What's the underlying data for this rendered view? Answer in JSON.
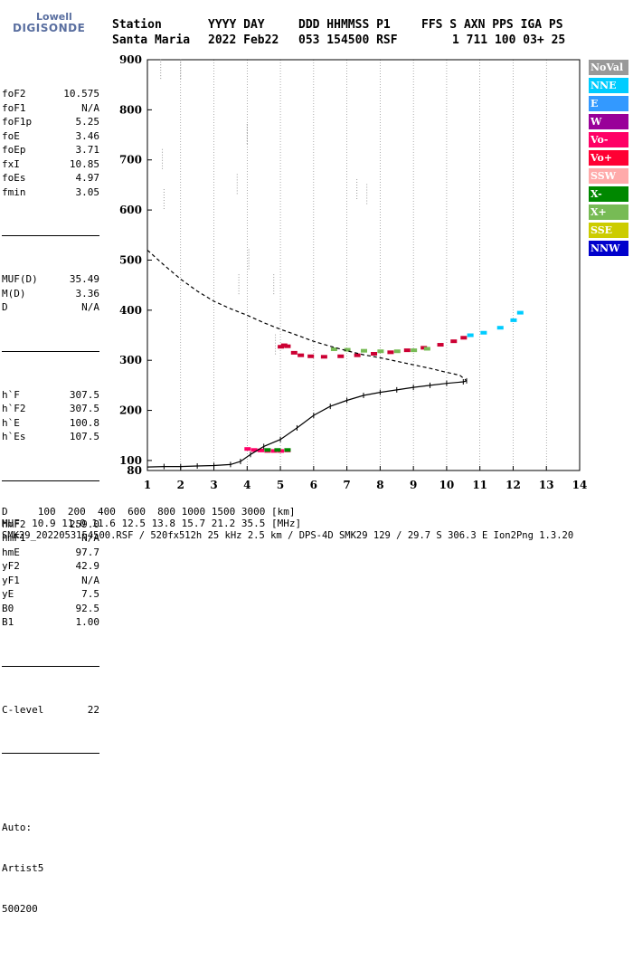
{
  "logo": {
    "line1": "Lowell",
    "line2": "DIGISONDE"
  },
  "header": {
    "labels": [
      "Station",
      "YYYY DAY",
      "DDD HHMMSS P1",
      "FFS S AXN PPS IGA PS"
    ],
    "values": [
      "Santa Maria",
      "2022 Feb22",
      "053 154500 RSF",
      "1 711 100 03+ 25"
    ]
  },
  "params": {
    "group1": [
      {
        "name": "foF2",
        "value": "10.575"
      },
      {
        "name": "foF1",
        "value": "N/A"
      },
      {
        "name": "foF1p",
        "value": "5.25"
      },
      {
        "name": "foE",
        "value": "3.46"
      },
      {
        "name": "foEp",
        "value": "3.71"
      },
      {
        "name": "fxI",
        "value": "10.85"
      },
      {
        "name": "foEs",
        "value": "4.97"
      },
      {
        "name": "fmin",
        "value": "3.05"
      }
    ],
    "group2": [
      {
        "name": "MUF(D)",
        "value": "35.49"
      },
      {
        "name": "M(D)",
        "value": "3.36"
      },
      {
        "name": "D",
        "value": "N/A"
      }
    ],
    "group3": [
      {
        "name": "h`F",
        "value": "307.5"
      },
      {
        "name": "h`F2",
        "value": "307.5"
      },
      {
        "name": "h`E",
        "value": "100.8"
      },
      {
        "name": "h`Es",
        "value": "107.5"
      }
    ],
    "group4": [
      {
        "name": "hmF2",
        "value": "259.0"
      },
      {
        "name": "hmF1",
        "value": "N/A"
      },
      {
        "name": "hmE",
        "value": "97.7"
      },
      {
        "name": "yF2",
        "value": "42.9"
      },
      {
        "name": "yF1",
        "value": "N/A"
      },
      {
        "name": "yE",
        "value": "7.5"
      },
      {
        "name": "B0",
        "value": "92.5"
      },
      {
        "name": "B1",
        "value": "1.00"
      }
    ],
    "group5": [
      {
        "name": "C-level",
        "value": "22"
      }
    ],
    "footer_lines": [
      "Auto:",
      "Artist5",
      "500200"
    ]
  },
  "legend": [
    {
      "label": "NoVal",
      "color": "#999999"
    },
    {
      "label": "NNE",
      "color": "#00ccff"
    },
    {
      "label": "E",
      "color": "#3399ff"
    },
    {
      "label": "W",
      "color": "#990099"
    },
    {
      "label": "Vo-",
      "color": "#ff0066"
    },
    {
      "label": "Vo+",
      "color": "#ff0033"
    },
    {
      "label": "SSW",
      "color": "#ffaaaa"
    },
    {
      "label": "X-",
      "color": "#008800"
    },
    {
      "label": "X+",
      "color": "#77bb55"
    },
    {
      "label": "SSE",
      "color": "#cccc00"
    },
    {
      "label": "NNW",
      "color": "#0000cc"
    }
  ],
  "bottom": {
    "d_line": "D     100  200  400  600  800 1000 1500 3000 [km]",
    "muf_line": "MUF  10.9 11.0 11.6 12.5 13.8 15.7 21.2 35.5 [MHz]",
    "file_line": "SMK29_2022053154500.RSF / 520fx512h 25 kHz 2.5 km / DPS-4D SMK29 129 / 29.7 S 306.3 E Ion2Png 1.3.20"
  },
  "chart_data": {
    "type": "scatter",
    "xlim": [
      1,
      14
    ],
    "ylim": [
      80,
      900
    ],
    "xticks": [
      1,
      2,
      3,
      4,
      5,
      6,
      7,
      8,
      9,
      10,
      11,
      12,
      13,
      14
    ],
    "yticks": [
      100,
      200,
      300,
      400,
      500,
      600,
      700,
      800,
      900
    ],
    "grid": "vertical dotted",
    "legend_position": "right",
    "series": [
      {
        "name": "Vo+",
        "color": "#cc0033",
        "points": [
          [
            5.0,
            327
          ],
          [
            5.1,
            330
          ],
          [
            5.2,
            328
          ],
          [
            5.4,
            315
          ],
          [
            5.6,
            310
          ],
          [
            5.9,
            308
          ],
          [
            6.3,
            307
          ],
          [
            6.8,
            308
          ],
          [
            7.3,
            310
          ],
          [
            7.8,
            313
          ],
          [
            8.3,
            316
          ],
          [
            8.8,
            320
          ],
          [
            9.3,
            325
          ],
          [
            9.8,
            331
          ],
          [
            10.2,
            338
          ],
          [
            10.5,
            345
          ]
        ]
      },
      {
        "name": "X+",
        "color": "#77bb55",
        "points": [
          [
            6.6,
            322
          ],
          [
            7.0,
            321
          ],
          [
            7.5,
            319
          ],
          [
            8.0,
            318
          ],
          [
            8.5,
            318
          ],
          [
            9.0,
            320
          ],
          [
            9.4,
            323
          ]
        ]
      },
      {
        "name": "Vo-",
        "color": "#ff0066",
        "points": [
          [
            4.0,
            123
          ],
          [
            4.2,
            121
          ],
          [
            4.4,
            120
          ],
          [
            4.6,
            119
          ],
          [
            4.8,
            119
          ],
          [
            5.0,
            119
          ],
          [
            5.2,
            120
          ]
        ]
      },
      {
        "name": "X-",
        "color": "#008800",
        "points": [
          [
            4.6,
            121
          ],
          [
            4.9,
            121
          ],
          [
            5.2,
            121
          ]
        ]
      },
      {
        "name": "NNE",
        "color": "#00ccff",
        "points": [
          [
            10.7,
            350
          ],
          [
            11.1,
            355
          ],
          [
            11.6,
            365
          ],
          [
            12.0,
            380
          ],
          [
            12.2,
            395
          ]
        ]
      },
      {
        "name": "NoVal",
        "color": "#999999",
        "points": [
          [
            1.4,
            880
          ],
          [
            1.45,
            700
          ],
          [
            1.5,
            620
          ],
          [
            2.0,
            880
          ],
          [
            3.7,
            650
          ],
          [
            3.75,
            450
          ],
          [
            4.0,
            750
          ],
          [
            4.05,
            500
          ],
          [
            4.8,
            450
          ],
          [
            4.85,
            330
          ],
          [
            7.3,
            640
          ],
          [
            7.6,
            630
          ]
        ]
      },
      {
        "name": "profile",
        "color": "#000000",
        "points": [
          [
            1.0,
            87
          ],
          [
            1.5,
            88
          ],
          [
            2.0,
            88
          ],
          [
            2.5,
            89
          ],
          [
            3.0,
            90
          ],
          [
            3.5,
            92
          ],
          [
            3.8,
            98
          ],
          [
            4.1,
            112
          ],
          [
            4.5,
            128
          ],
          [
            5.0,
            142
          ],
          [
            5.5,
            165
          ],
          [
            6.0,
            190
          ],
          [
            6.5,
            208
          ],
          [
            7.0,
            220
          ],
          [
            7.5,
            230
          ],
          [
            8.0,
            236
          ],
          [
            8.5,
            241
          ],
          [
            9.0,
            246
          ],
          [
            9.5,
            250
          ],
          [
            10.0,
            254
          ],
          [
            10.5,
            257
          ],
          [
            10.6,
            259
          ]
        ]
      },
      {
        "name": "extrapolated",
        "color": "#000000",
        "points": [
          [
            1.0,
            520
          ],
          [
            1.5,
            490
          ],
          [
            2.0,
            462
          ],
          [
            2.5,
            438
          ],
          [
            3.0,
            418
          ],
          [
            3.5,
            403
          ],
          [
            4.0,
            390
          ],
          [
            4.5,
            375
          ],
          [
            5.0,
            362
          ],
          [
            5.5,
            350
          ],
          [
            6.0,
            338
          ],
          [
            6.5,
            328
          ],
          [
            7.0,
            319
          ],
          [
            7.5,
            311
          ],
          [
            8.0,
            305
          ],
          [
            8.5,
            298
          ],
          [
            9.0,
            291
          ],
          [
            9.5,
            284
          ],
          [
            10.0,
            276
          ],
          [
            10.4,
            270
          ],
          [
            10.6,
            259
          ]
        ]
      }
    ]
  }
}
